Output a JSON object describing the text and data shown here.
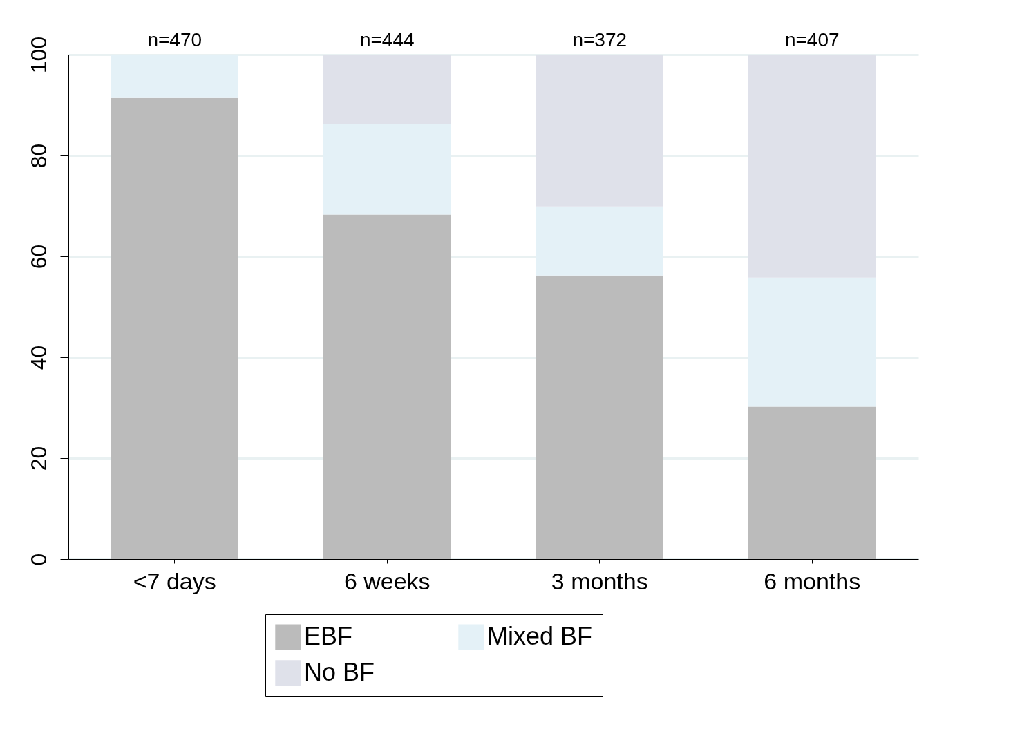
{
  "chart_data": {
    "type": "bar",
    "stacked": true,
    "categories": [
      "<7 days",
      "6 weeks",
      "3 months",
      "6 months"
    ],
    "series": [
      {
        "name": "EBF",
        "color": "#bbbbbb",
        "values": [
          91.4,
          68.3,
          56.2,
          30.2
        ]
      },
      {
        "name": "Mixed BF",
        "color": "#e4f1f7",
        "values": [
          8.6,
          18.0,
          13.7,
          25.6
        ]
      },
      {
        "name": "No BF",
        "color": "#dfe1ea",
        "values": [
          0,
          13.7,
          30.1,
          44.2
        ]
      }
    ],
    "ylim": [
      0,
      100
    ],
    "yticks": [
      0,
      20,
      40,
      60,
      80,
      100
    ],
    "grid": "y",
    "legend": "bottom",
    "annotations": [
      {
        "text": "n=470",
        "x": "<7 days",
        "y": 100
      },
      {
        "text": "n=444",
        "x": "6 weeks",
        "y": 100
      },
      {
        "text": "n=372",
        "x": "3 months",
        "y": 100
      },
      {
        "text": "n=407",
        "x": "6 months",
        "y": 100
      }
    ]
  }
}
